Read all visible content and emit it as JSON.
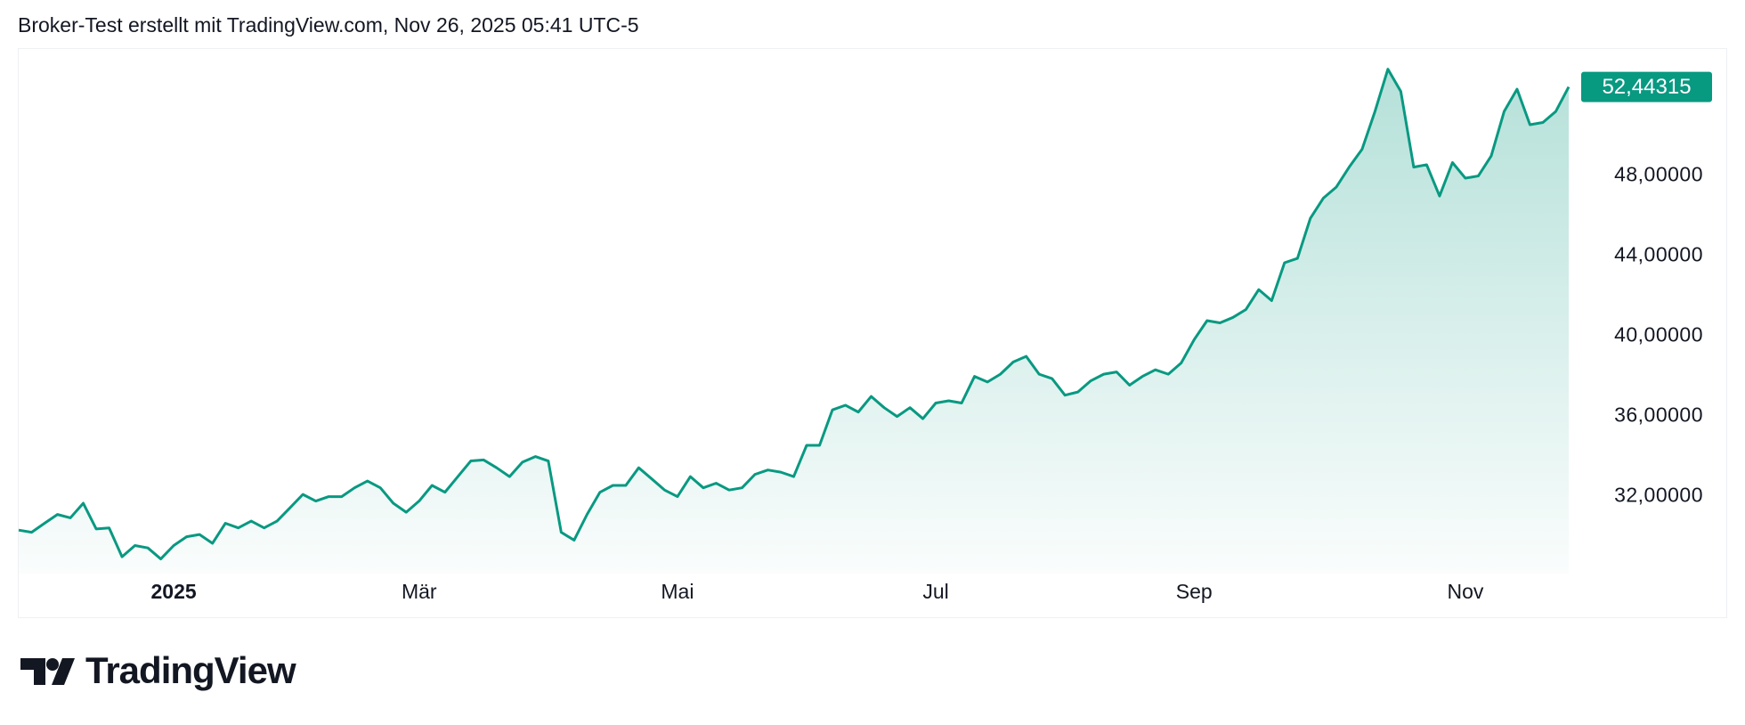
{
  "header": {
    "caption": "Broker-Test erstellt mit TradingView.com, Nov 26, 2025 05:41 UTC-5"
  },
  "chart_data": {
    "type": "area",
    "color": "#089981",
    "grid": false,
    "categories": [
      null,
      null,
      null,
      null,
      null,
      null,
      null,
      null,
      null,
      null,
      null,
      null,
      "2025",
      null,
      null,
      null,
      null,
      null,
      null,
      null,
      null,
      null,
      null,
      null,
      null,
      null,
      null,
      null,
      null,
      null,
      null,
      "Mär",
      null,
      null,
      null,
      null,
      null,
      null,
      null,
      null,
      null,
      null,
      null,
      null,
      null,
      null,
      null,
      null,
      null,
      null,
      null,
      "Mai",
      null,
      null,
      null,
      null,
      null,
      null,
      null,
      null,
      null,
      null,
      null,
      null,
      null,
      null,
      null,
      null,
      null,
      null,
      null,
      "Jul",
      null,
      null,
      null,
      null,
      null,
      null,
      null,
      null,
      null,
      null,
      null,
      null,
      null,
      null,
      null,
      null,
      null,
      null,
      null,
      "Sep",
      null,
      null,
      null,
      null,
      null,
      null,
      null,
      null,
      null,
      null,
      null,
      null,
      null,
      null,
      null,
      null,
      null,
      null,
      null,
      null,
      "Nov",
      null,
      null,
      null,
      null,
      null,
      null,
      null,
      null
    ],
    "values": [
      30.33,
      30.22,
      30.67,
      31.11,
      30.94,
      31.67,
      30.39,
      30.44,
      29.0,
      29.56,
      29.44,
      28.89,
      29.56,
      30.0,
      30.11,
      29.67,
      30.67,
      30.44,
      30.78,
      30.44,
      30.78,
      31.44,
      32.11,
      31.78,
      32.0,
      32.0,
      32.44,
      32.78,
      32.44,
      31.67,
      31.22,
      31.78,
      32.56,
      32.22,
      33.0,
      33.78,
      33.83,
      33.44,
      33.0,
      33.72,
      34.0,
      33.78,
      30.22,
      29.83,
      31.11,
      32.22,
      32.56,
      32.56,
      33.44,
      32.89,
      32.33,
      32.0,
      33.0,
      32.44,
      32.67,
      32.33,
      32.44,
      33.11,
      33.33,
      33.22,
      33.0,
      34.56,
      34.56,
      36.33,
      36.56,
      36.22,
      37.0,
      36.44,
      36.0,
      36.44,
      35.89,
      36.67,
      36.78,
      36.67,
      38.0,
      37.72,
      38.11,
      38.72,
      39.0,
      38.11,
      37.89,
      37.06,
      37.22,
      37.78,
      38.11,
      38.22,
      37.56,
      38.0,
      38.33,
      38.11,
      38.67,
      39.83,
      40.78,
      40.67,
      40.94,
      41.33,
      42.33,
      41.78,
      43.67,
      43.89,
      45.89,
      46.89,
      47.44,
      48.44,
      49.33,
      51.22,
      53.33,
      52.22,
      48.44,
      48.56,
      47.0,
      48.67,
      47.89,
      48.0,
      49.0,
      51.22,
      52.33,
      50.56,
      50.67,
      51.22,
      52.44315
    ],
    "value_labels": [
      null,
      null,
      null,
      null,
      null,
      null,
      null,
      null,
      null,
      null,
      null,
      null,
      null,
      null,
      null,
      null,
      null,
      null,
      null,
      null,
      null,
      null,
      null,
      null,
      null,
      null,
      null,
      null,
      null,
      null,
      null,
      null,
      null,
      null,
      null,
      null,
      null,
      null,
      null,
      null,
      null,
      null,
      null,
      null,
      null,
      null,
      null,
      null,
      null,
      null,
      null,
      null,
      null,
      null,
      null,
      null,
      null,
      null,
      null,
      null,
      null,
      null,
      null,
      null,
      null,
      null,
      null,
      null,
      null,
      null,
      null,
      null,
      null,
      null,
      null,
      null,
      null,
      null,
      null,
      null,
      null,
      null,
      null,
      null,
      null,
      null,
      null,
      null,
      null,
      null,
      null,
      null,
      null,
      null,
      null,
      null,
      null,
      null,
      null,
      null,
      null,
      null,
      null,
      null,
      null,
      null,
      null,
      null,
      null,
      null,
      null,
      null,
      null,
      null,
      null,
      null,
      null,
      null,
      null,
      null,
      "52,44315"
    ],
    "ylim": [
      28.16,
      54.38
    ],
    "yticks": [
      {
        "value": 32,
        "label": "32,00000"
      },
      {
        "value": 36,
        "label": "36,00000"
      },
      {
        "value": 40,
        "label": "40,00000"
      },
      {
        "value": 44,
        "label": "44,00000"
      },
      {
        "value": 48,
        "label": "48,00000"
      }
    ]
  },
  "footer": {
    "logo": "TradingView"
  }
}
